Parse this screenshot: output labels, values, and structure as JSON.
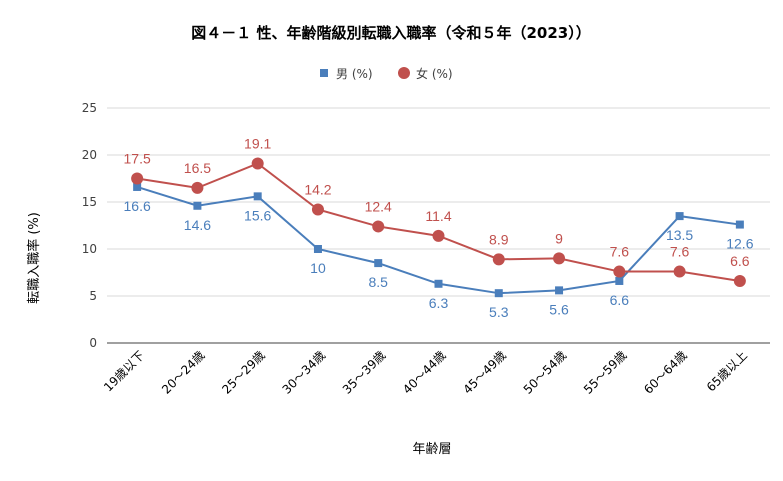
{
  "chart_data": {
    "type": "line",
    "title": "図４－１ 性、年齢階級別転職入職率（令和５年（2023））",
    "xlabel": "年齢層",
    "ylabel": "転職入職率 (%)",
    "ylim": [
      0,
      25
    ],
    "yticks": [
      0,
      5,
      10,
      15,
      20,
      25
    ],
    "grid": true,
    "legend_position": "top-center",
    "categories": [
      "19歳以下",
      "20～24歳",
      "25～29歳",
      "30～34歳",
      "35～39歳",
      "40～44歳",
      "45～49歳",
      "50～54歳",
      "55～59歳",
      "60～64歳",
      "65歳以上"
    ],
    "series": [
      {
        "name": "男 (%)",
        "marker": "square",
        "color": "#4a7ebb",
        "label_position": "below",
        "values": [
          16.6,
          14.6,
          15.6,
          10,
          8.5,
          6.3,
          5.3,
          5.6,
          6.6,
          13.5,
          12.6
        ]
      },
      {
        "name": "女 (%)",
        "marker": "circle",
        "color": "#c0504d",
        "label_position": "above",
        "values": [
          17.5,
          16.5,
          19.1,
          14.2,
          12.4,
          11.4,
          8.9,
          9,
          7.6,
          7.6,
          6.6
        ]
      }
    ]
  }
}
